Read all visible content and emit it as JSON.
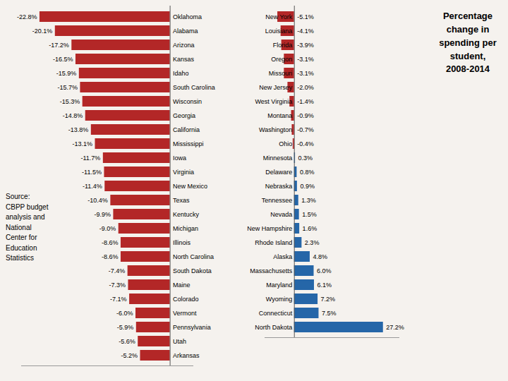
{
  "chart_data": [
    {
      "type": "bar",
      "orientation": "horizontal",
      "categories": [
        "Oklahoma",
        "Alabama",
        "Arizona",
        "Kansas",
        "Idaho",
        "South Carolina",
        "Wisconsin",
        "Georgia",
        "California",
        "Mississippi",
        "Iowa",
        "Virginia",
        "New Mexico",
        "Texas",
        "Kentucky",
        "Michigan",
        "Illinois",
        "North Carolina",
        "South Dakota",
        "Maine",
        "Colorado",
        "Vermont",
        "Pennsylvania",
        "Utah",
        "Arkansas"
      ],
      "values": [
        -22.8,
        -20.1,
        -17.2,
        -16.5,
        -15.9,
        -15.7,
        -15.3,
        -14.8,
        -13.8,
        -13.1,
        -11.7,
        -11.5,
        -11.4,
        -10.4,
        -9.9,
        -9.0,
        -8.6,
        -8.6,
        -7.4,
        -7.3,
        -7.1,
        -6.0,
        -5.9,
        -5.6,
        -5.2
      ],
      "value_labels": [
        "-22.8%",
        "-20.1%",
        "-17.2%",
        "-16.5%",
        "-15.9%",
        "-15.7%",
        "-15.3%",
        "-14.8%",
        "-13.8%",
        "-13.1%",
        "-11.7%",
        "-11.5%",
        "-11.4%",
        "-10.4%",
        "-9.9%",
        "-9.0%",
        "-8.6%",
        "-8.6%",
        "-7.4%",
        "-7.3%",
        "-7.1%",
        "-6.0%",
        "-5.9%",
        "-5.6%",
        "-5.2%"
      ],
      "colors": [
        "#b32727",
        "#b32727",
        "#b32727",
        "#b32727",
        "#b32727",
        "#b32727",
        "#b32727",
        "#b32727",
        "#b32727",
        "#b32727",
        "#b32727",
        "#b32727",
        "#b32727",
        "#b32727",
        "#b32727",
        "#b32727",
        "#b32727",
        "#b32727",
        "#b32727",
        "#b32727",
        "#b32727",
        "#b32727",
        "#b32727",
        "#b32727",
        "#b32727"
      ],
      "data_labels": true,
      "xlim": [
        -26,
        4
      ],
      "tick_labels": false,
      "grid": false,
      "annotations": [
        "Source:\nCBPP budget\nanalysis and\nNational\nCenter for\nEducation\nStatistics"
      ]
    },
    {
      "type": "bar",
      "orientation": "horizontal",
      "title": "Percentage\nchange in\nspending per\nstudent,\n2008-2014",
      "categories": [
        "New York",
        "Louisiana",
        "Florida",
        "Oregon",
        "Missouri",
        "New Jersey",
        "West Virginia",
        "Montana",
        "Washington",
        "Ohio",
        "Minnesota",
        "Delaware",
        "Nebraska",
        "Tennessee",
        "Nevada",
        "New Hampshire",
        "Rhode Island",
        "Alaska",
        "Massachusetts",
        "Maryland",
        "Wyoming",
        "Connecticut",
        "North Dakota"
      ],
      "values": [
        -5.1,
        -4.1,
        -3.9,
        -3.1,
        -3.1,
        -2.0,
        -1.4,
        -0.9,
        -0.7,
        -0.4,
        0.3,
        0.8,
        0.9,
        1.3,
        1.5,
        1.6,
        2.3,
        4.8,
        6.0,
        6.1,
        7.2,
        7.5,
        27.2
      ],
      "value_labels": [
        "-5.1%",
        "-4.1%",
        "-3.9%",
        "-3.1%",
        "-3.1%",
        "-2.0%",
        "-1.4%",
        "-0.9%",
        "-0.7%",
        "-0.4%",
        "0.3%",
        "0.8%",
        "0.9%",
        "1.3%",
        "1.5%",
        "1.6%",
        "2.3%",
        "4.8%",
        "6.0%",
        "6.1%",
        "7.2%",
        "7.5%",
        "27.2%"
      ],
      "colors": [
        "#b32727",
        "#b32727",
        "#b32727",
        "#b32727",
        "#b32727",
        "#b32727",
        "#b32727",
        "#b32727",
        "#b32727",
        "#b32727",
        "#2566a8",
        "#2566a8",
        "#2566a8",
        "#2566a8",
        "#2566a8",
        "#2566a8",
        "#2566a8",
        "#2566a8",
        "#2566a8",
        "#2566a8",
        "#2566a8",
        "#2566a8",
        "#2566a8"
      ],
      "data_labels": true,
      "xlim": [
        -9,
        32
      ],
      "tick_labels": false,
      "grid": false
    }
  ]
}
